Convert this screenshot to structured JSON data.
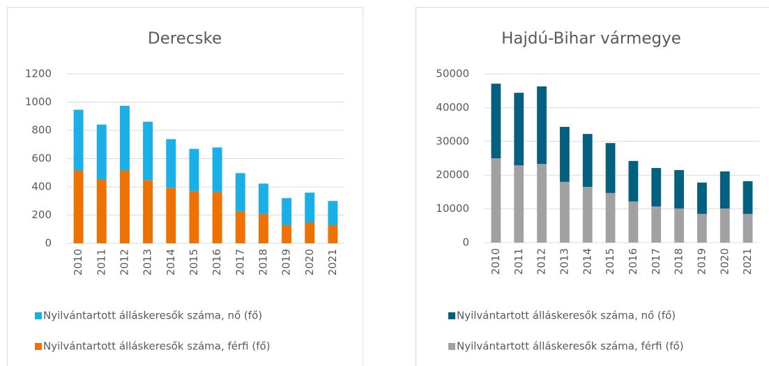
{
  "chart_data": [
    {
      "type": "bar",
      "stacked": true,
      "title": "Derecske",
      "categories": [
        "2010",
        "2011",
        "2012",
        "2013",
        "2014",
        "2015",
        "2016",
        "2017",
        "2018",
        "2019",
        "2020",
        "2021"
      ],
      "series": [
        {
          "name": "Nyilvántartott álláskeresők száma, nő (fő)",
          "color": "#1aafe6",
          "values": [
            430,
            389,
            458,
            413,
            344,
            300,
            315,
            271,
            216,
            192,
            211,
            172
          ]
        },
        {
          "name": "Nyilvántartott álláskeresők száma, férfi (fő)",
          "color": "#ee7203",
          "values": [
            516,
            452,
            516,
            448,
            394,
            369,
            364,
            226,
            207,
            128,
            148,
            128
          ]
        }
      ],
      "ylim": [
        0,
        1200
      ],
      "yticks": [
        0,
        200,
        400,
        600,
        800,
        1000,
        1200
      ],
      "grid": true,
      "legend": "bottom"
    },
    {
      "type": "bar",
      "stacked": true,
      "title": "Hajdú-Bihar vármegye",
      "categories": [
        "2010",
        "2011",
        "2012",
        "2013",
        "2014",
        "2015",
        "2016",
        "2017",
        "2018",
        "2019",
        "2020",
        "2021"
      ],
      "series": [
        {
          "name": "Nyilvántartott álláskeresők száma, nő (fő)",
          "color": "#04607f",
          "values": [
            22100,
            21500,
            23000,
            16300,
            15700,
            14800,
            12000,
            11400,
            11400,
            9300,
            11000,
            9700
          ]
        },
        {
          "name": "Nyilvántartott álláskeresők száma, férfi (fő)",
          "color": "#a1a1a1",
          "values": [
            25000,
            22900,
            23300,
            18000,
            16500,
            14700,
            12200,
            10700,
            10100,
            8500,
            10100,
            8500
          ]
        }
      ],
      "ylim": [
        0,
        50000
      ],
      "yticks": [
        0,
        10000,
        20000,
        30000,
        40000,
        50000
      ],
      "grid": true,
      "legend": "bottom"
    }
  ]
}
